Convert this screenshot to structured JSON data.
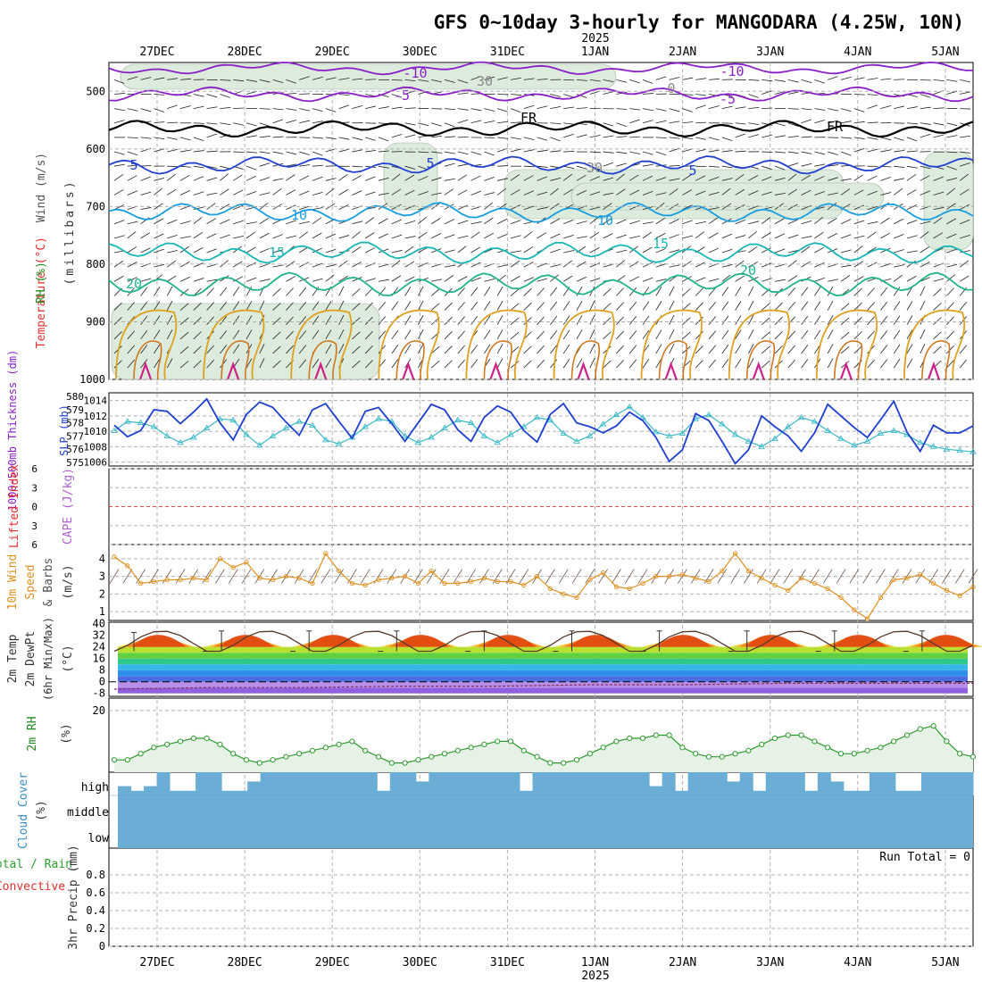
{
  "title": "GFS 0~10day 3-hourly for MANGODARA (4.25W, 10N)",
  "year_label": "2025",
  "date_ticks": [
    "27DEC",
    "28DEC",
    "29DEC",
    "30DEC",
    "31DEC",
    "1JAN",
    "2JAN",
    "3JAN",
    "4JAN",
    "5JAN"
  ],
  "colors": {
    "purple": "#8a1fc9",
    "black": "#000000",
    "blue": "#1f3fd0",
    "lightblue": "#1a9de0",
    "teal": "#1ab5b5",
    "green": "#20b38a",
    "orange": "#e0a020",
    "darkorange": "#d07820",
    "magenta": "#d0208a",
    "rh_fill": "#dcebdc",
    "cloud": "#6aaed6",
    "grid": "#b0b0b0"
  },
  "panels": {
    "upper_air": {
      "label_wind": "Wind (m/s)",
      "label_temp": "Temperature (°C)",
      "label_rh": "RH (%)",
      "label_units": "(millibars)",
      "yticks": [
        "500",
        "600",
        "700",
        "800",
        "900",
        "1000"
      ],
      "contour_labels": {
        "neg10": "-10",
        "neg5": "-5",
        "fr": "FR",
        "t5": "5",
        "t10": "10",
        "t15": "15",
        "t20": "20",
        "rh30": "30",
        "rh0": "0"
      }
    },
    "thickness": {
      "label_left": "1000-500mb Thickness (dm)",
      "label_right": "SLP (mb)",
      "yticks_left": [
        "575",
        "576",
        "577",
        "578",
        "579",
        "580"
      ],
      "yticks_right": [
        "1006",
        "1008",
        "1010",
        "1012",
        "1014"
      ]
    },
    "stability": {
      "label_left": "Lifted Index",
      "label_right": "CAPE (J/kg)",
      "yticks": [
        "-6",
        "-3",
        "0",
        "3",
        "6"
      ]
    },
    "wind10m": {
      "label1": "10m Wind",
      "label2": "Speed",
      "label3": "& Barbs",
      "label4": "(m/s)",
      "yticks": [
        "1",
        "2",
        "3",
        "4"
      ]
    },
    "temp2m": {
      "label1": "2m Temp",
      "label2": "2m DewPt",
      "label3": "(6hr Min/Max)",
      "label4": "(°C)",
      "yticks": [
        "40",
        "32",
        "24",
        "16",
        "8",
        "0",
        "-8"
      ]
    },
    "rh2m": {
      "label1": "2m RH",
      "label2": "(%)",
      "yticks": [
        "20"
      ]
    },
    "cloud": {
      "label1": "Cloud Cover",
      "label2": "(%)",
      "levels": [
        "high",
        "middle",
        "low"
      ]
    },
    "precip": {
      "label1": "Total / Rain",
      "label2": "Convective",
      "label3": "3hr Precip (mm)",
      "yticks": [
        "0",
        "0.2",
        "0.4",
        "0.6",
        "0.8"
      ],
      "run_total": "Run Total = 0"
    }
  },
  "chart_data": [
    {
      "type": "line",
      "name": "upper-air cross section (temperature isotherms in °C, pressure in mb)",
      "x_range_days": [
        0,
        10
      ],
      "ylim": [
        1000,
        450
      ],
      "isotherms": [
        {
          "label": "-10",
          "pressure_mean": 460
        },
        {
          "label": "-5",
          "pressure_mean": 505
        },
        {
          "label": "FR",
          "pressure_mean": 565
        },
        {
          "label": "5",
          "pressure_mean": 628
        },
        {
          "label": "10",
          "pressure_mean": 710
        },
        {
          "label": "15",
          "pressure_mean": 780
        },
        {
          "label": "20",
          "pressure_mean": 835
        }
      ]
    },
    {
      "type": "line",
      "name": "1000-500mb thickness / SLP",
      "ylim_thickness": [
        575,
        580
      ],
      "ylim_slp": [
        1005.5,
        1015
      ],
      "slp": [
        1010.8,
        1009.3,
        1010.1,
        1012.8,
        1012.6,
        1011.0,
        1012.5,
        1014.2,
        1011.1,
        1008.9,
        1012.2,
        1013.8,
        1013.1,
        1011.2,
        1009.5,
        1012.8,
        1013.6,
        1011.3,
        1009.1,
        1012.6,
        1013.1,
        1011.0,
        1008.7,
        1011.1,
        1013.5,
        1012.8,
        1010.2,
        1008.7,
        1011.8,
        1013.3,
        1012.5,
        1010.1,
        1008.6,
        1012.2,
        1013.6,
        1011.1,
        1010.6,
        1009.8,
        1010.7,
        1012.5,
        1011.4,
        1009.2,
        1006.1,
        1007.6,
        1012.3,
        1011.4,
        1008.7,
        1005.8,
        1007.6,
        1012.0,
        1010.6,
        1009.4,
        1007.4,
        1009.8,
        1013.5,
        1012.0,
        1010.5,
        1009.2,
        1011.5,
        1013.9,
        1009.9,
        1007.4,
        1010.8,
        1009.8,
        1009.8,
        1010.7
      ],
      "thickness": [
        577.4,
        578.1,
        578.0,
        577.7,
        577.0,
        576.5,
        576.9,
        577.6,
        578.3,
        578.2,
        577.1,
        576.3,
        577.0,
        577.6,
        578.1,
        577.8,
        576.7,
        576.4,
        576.9,
        577.7,
        578.3,
        578.1,
        577.0,
        576.5,
        576.9,
        577.6,
        578.2,
        578.0,
        577.0,
        576.5,
        577.1,
        577.7,
        578.4,
        578.2,
        577.2,
        576.6,
        577.0,
        577.9,
        578.6,
        579.2,
        578.4,
        577.3,
        577.0,
        577.2,
        578.3,
        578.6,
        577.9,
        577.1,
        576.6,
        576.2,
        576.8,
        577.7,
        578.4,
        578.1,
        577.4,
        576.8,
        576.3,
        576.6,
        577.2,
        577.4,
        577.1,
        576.5,
        576.2,
        576.0,
        575.9,
        575.8
      ]
    },
    {
      "type": "line",
      "name": "10m wind speed",
      "ylim": [
        0.5,
        4.8
      ],
      "values": [
        4.1,
        3.6,
        2.6,
        2.7,
        2.8,
        2.8,
        2.9,
        2.8,
        4.0,
        3.5,
        3.8,
        2.9,
        2.8,
        3.0,
        2.9,
        2.6,
        4.3,
        3.3,
        2.6,
        2.5,
        2.8,
        2.9,
        3.0,
        2.6,
        3.3,
        2.6,
        2.6,
        2.7,
        2.9,
        2.7,
        2.7,
        2.5,
        3.0,
        2.3,
        2.0,
        1.8,
        2.8,
        3.2,
        2.4,
        2.3,
        2.6,
        3.0,
        3.0,
        3.1,
        2.9,
        2.7,
        3.3,
        4.3,
        3.3,
        2.9,
        2.5,
        2.2,
        2.9,
        2.6,
        2.3,
        1.8,
        1.1,
        0.6,
        1.8,
        2.8,
        2.9,
        3.1,
        2.6,
        2.2,
        1.9,
        2.4
      ]
    },
    {
      "type": "area",
      "name": "2m temperature and dewpoint",
      "ylim": [
        -10,
        41
      ],
      "temperature_daily_max": [
        34,
        35,
        35,
        35,
        35,
        35,
        35,
        35,
        35,
        35
      ],
      "temperature_daily_min": [
        21,
        21,
        21,
        21,
        21,
        21,
        21,
        21,
        21,
        21
      ],
      "dewpoint_approx": [
        -5,
        -4,
        -4,
        -3,
        -3,
        -2,
        -2,
        -1,
        -1,
        -1
      ]
    },
    {
      "type": "area",
      "name": "2m RH",
      "ylim": [
        0,
        24
      ],
      "values": [
        4,
        4,
        6,
        8,
        9,
        10,
        11,
        11,
        9,
        6,
        4,
        3,
        4,
        5,
        6,
        7,
        8,
        9,
        10,
        7,
        5,
        3,
        3,
        4,
        5,
        6,
        7,
        8,
        9,
        10,
        10,
        7,
        5,
        3,
        3,
        4,
        6,
        8,
        10,
        11,
        11,
        12,
        12,
        8,
        6,
        5,
        5,
        6,
        7,
        9,
        11,
        12,
        12,
        10,
        8,
        6,
        6,
        7,
        8,
        10,
        12,
        14,
        15,
        10,
        6,
        5
      ]
    },
    {
      "type": "bar",
      "name": "3hr precip",
      "ylim": [
        0,
        1
      ],
      "values": []
    }
  ]
}
